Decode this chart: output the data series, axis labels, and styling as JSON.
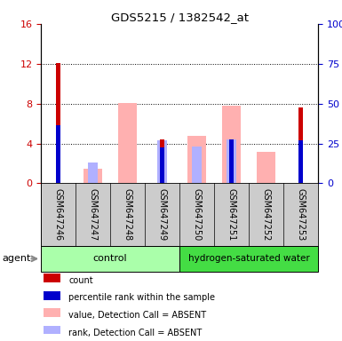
{
  "title": "GDS5215 / 1382542_at",
  "samples": [
    "GSM647246",
    "GSM647247",
    "GSM647248",
    "GSM647249",
    "GSM647250",
    "GSM647251",
    "GSM647252",
    "GSM647253"
  ],
  "red_bars": [
    12.1,
    0,
    0,
    4.4,
    0,
    0,
    0,
    7.6
  ],
  "blue_bars": [
    36.25,
    0,
    0,
    22.5,
    0,
    27.5,
    0,
    26.875
  ],
  "pink_bars": [
    0,
    1.5,
    8.1,
    0,
    4.8,
    7.8,
    3.2,
    0
  ],
  "lightblue_bars": [
    0,
    13.125,
    0,
    26.875,
    23.125,
    27.5,
    0,
    0
  ],
  "ylim_left": [
    0,
    16
  ],
  "ylim_right": [
    0,
    100
  ],
  "left_yticks": [
    0,
    4,
    8,
    12,
    16
  ],
  "right_yticks": [
    0,
    25,
    50,
    75,
    100
  ],
  "right_yticklabels": [
    "0",
    "25",
    "50",
    "75",
    "100%"
  ],
  "color_red": "#cc0000",
  "color_blue": "#0000cc",
  "color_pink": "#ffb0b0",
  "color_lightblue": "#b0b0ff",
  "left_tick_color": "#cc0000",
  "right_tick_color": "#0000cc",
  "agent_label": "agent",
  "legend_items": [
    {
      "color": "#cc0000",
      "label": "count"
    },
    {
      "color": "#0000cc",
      "label": "percentile rank within the sample"
    },
    {
      "color": "#ffb0b0",
      "label": "value, Detection Call = ABSENT"
    },
    {
      "color": "#b0b0ff",
      "label": "rank, Detection Call = ABSENT"
    }
  ],
  "ctrl_color": "#aaffaa",
  "hyd_color": "#44dd44",
  "label_bg": "#cccccc",
  "fig_width": 3.85,
  "fig_height": 3.84
}
